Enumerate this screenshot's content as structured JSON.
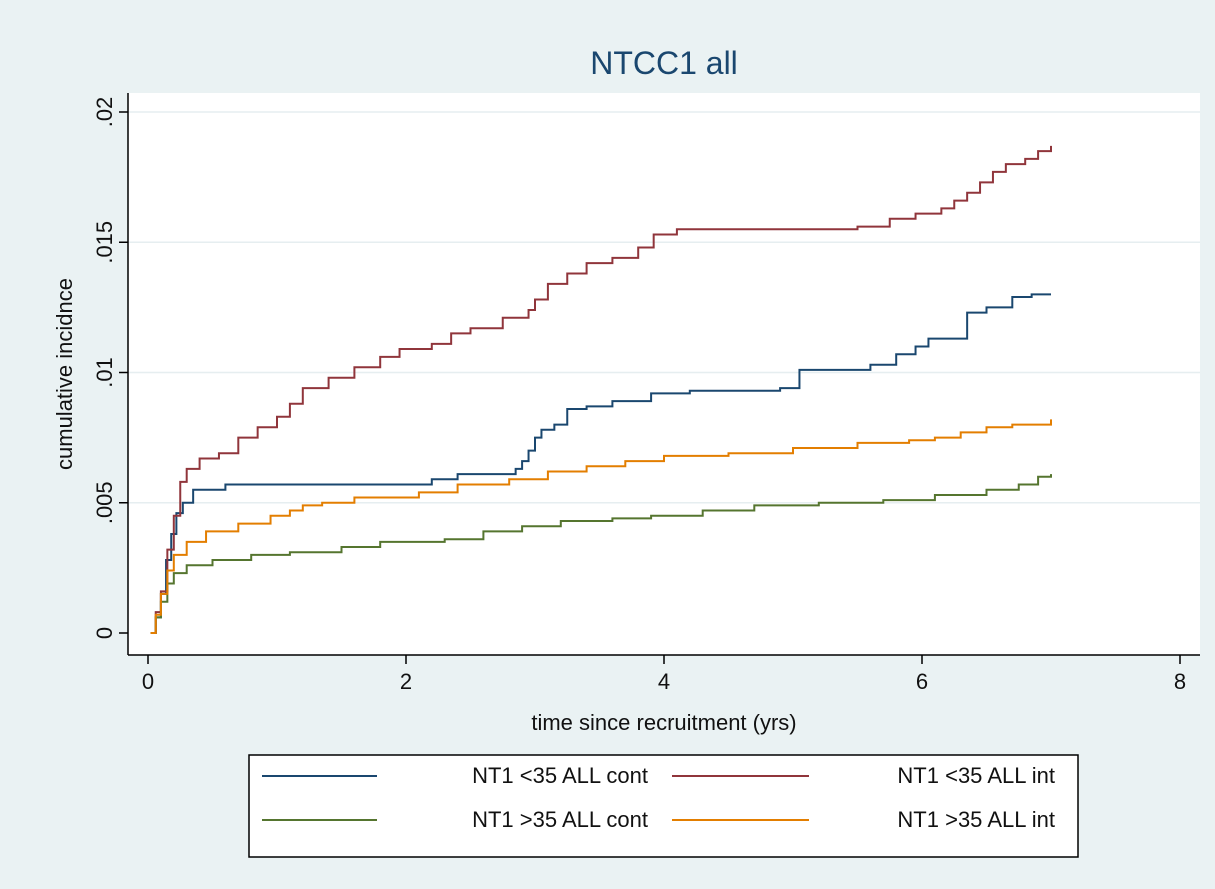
{
  "chart_data": {
    "type": "line",
    "title": "NTCC1 all",
    "xlabel": "time since recruitment (yrs)",
    "ylabel": "cumulative incidnce",
    "xlim": [
      0,
      8
    ],
    "ylim": [
      0,
      0.02
    ],
    "x_ticks": [
      0,
      2,
      4,
      6,
      8
    ],
    "x_tick_labels": [
      "0",
      "2",
      "4",
      "6",
      "8"
    ],
    "y_ticks": [
      0,
      0.005,
      0.01,
      0.015,
      0.02
    ],
    "y_tick_labels": [
      "0",
      ".005",
      ".01",
      ".015",
      ".02"
    ],
    "grid": "horizontal",
    "legend_position": "bottom",
    "series": [
      {
        "name": "NT1 <35 ALL cont",
        "color": "#1a476f",
        "step": true,
        "points": [
          [
            0.02,
            0
          ],
          [
            0.06,
            0.0006
          ],
          [
            0.1,
            0.0015
          ],
          [
            0.14,
            0.0028
          ],
          [
            0.18,
            0.0038
          ],
          [
            0.22,
            0.0046
          ],
          [
            0.27,
            0.005
          ],
          [
            0.35,
            0.0055
          ],
          [
            0.6,
            0.0057
          ],
          [
            2.2,
            0.0059
          ],
          [
            2.4,
            0.0061
          ],
          [
            2.85,
            0.0063
          ],
          [
            2.9,
            0.0066
          ],
          [
            2.95,
            0.007
          ],
          [
            3.0,
            0.0075
          ],
          [
            3.05,
            0.0078
          ],
          [
            3.15,
            0.008
          ],
          [
            3.25,
            0.0086
          ],
          [
            3.4,
            0.0087
          ],
          [
            3.6,
            0.0089
          ],
          [
            3.9,
            0.0092
          ],
          [
            4.2,
            0.0093
          ],
          [
            4.9,
            0.0094
          ],
          [
            5.05,
            0.0101
          ],
          [
            5.6,
            0.0103
          ],
          [
            5.8,
            0.0107
          ],
          [
            5.95,
            0.011
          ],
          [
            6.05,
            0.0113
          ],
          [
            6.35,
            0.0123
          ],
          [
            6.5,
            0.0125
          ],
          [
            6.7,
            0.0129
          ],
          [
            6.85,
            0.013
          ],
          [
            7.0,
            0.013
          ]
        ]
      },
      {
        "name": "NT1 <35 ALL int",
        "color": "#90353b",
        "step": true,
        "points": [
          [
            0.02,
            0
          ],
          [
            0.06,
            0.0008
          ],
          [
            0.1,
            0.0016
          ],
          [
            0.15,
            0.0032
          ],
          [
            0.2,
            0.0045
          ],
          [
            0.25,
            0.0058
          ],
          [
            0.3,
            0.0063
          ],
          [
            0.4,
            0.0067
          ],
          [
            0.55,
            0.0069
          ],
          [
            0.7,
            0.0075
          ],
          [
            0.85,
            0.0079
          ],
          [
            1.0,
            0.0083
          ],
          [
            1.1,
            0.0088
          ],
          [
            1.2,
            0.0094
          ],
          [
            1.4,
            0.0098
          ],
          [
            1.6,
            0.0102
          ],
          [
            1.8,
            0.0106
          ],
          [
            1.95,
            0.0109
          ],
          [
            2.2,
            0.0111
          ],
          [
            2.35,
            0.0115
          ],
          [
            2.5,
            0.0117
          ],
          [
            2.75,
            0.0121
          ],
          [
            2.95,
            0.0124
          ],
          [
            3.0,
            0.0128
          ],
          [
            3.1,
            0.0134
          ],
          [
            3.25,
            0.0138
          ],
          [
            3.4,
            0.0142
          ],
          [
            3.6,
            0.0144
          ],
          [
            3.8,
            0.0148
          ],
          [
            3.92,
            0.0153
          ],
          [
            4.1,
            0.0155
          ],
          [
            5.5,
            0.0156
          ],
          [
            5.75,
            0.0159
          ],
          [
            5.95,
            0.0161
          ],
          [
            6.15,
            0.0163
          ],
          [
            6.25,
            0.0166
          ],
          [
            6.35,
            0.0169
          ],
          [
            6.45,
            0.0173
          ],
          [
            6.55,
            0.0177
          ],
          [
            6.65,
            0.018
          ],
          [
            6.8,
            0.0182
          ],
          [
            6.9,
            0.0185
          ],
          [
            7.0,
            0.0187
          ]
        ]
      },
      {
        "name": "NT1 >35 ALL cont",
        "color": "#55752f",
        "step": true,
        "points": [
          [
            0.02,
            0
          ],
          [
            0.06,
            0.0006
          ],
          [
            0.1,
            0.0012
          ],
          [
            0.15,
            0.0019
          ],
          [
            0.2,
            0.0023
          ],
          [
            0.3,
            0.0026
          ],
          [
            0.5,
            0.0028
          ],
          [
            0.8,
            0.003
          ],
          [
            1.1,
            0.0031
          ],
          [
            1.5,
            0.0033
          ],
          [
            1.8,
            0.0035
          ],
          [
            2.3,
            0.0036
          ],
          [
            2.6,
            0.0039
          ],
          [
            2.9,
            0.0041
          ],
          [
            3.2,
            0.0043
          ],
          [
            3.6,
            0.0044
          ],
          [
            3.9,
            0.0045
          ],
          [
            4.3,
            0.0047
          ],
          [
            4.7,
            0.0049
          ],
          [
            5.2,
            0.005
          ],
          [
            5.7,
            0.0051
          ],
          [
            6.1,
            0.0053
          ],
          [
            6.5,
            0.0055
          ],
          [
            6.75,
            0.0057
          ],
          [
            6.9,
            0.006
          ],
          [
            7.0,
            0.0061
          ]
        ]
      },
      {
        "name": "NT1 >35 ALL int",
        "color": "#e37e00",
        "step": true,
        "points": [
          [
            0.02,
            0
          ],
          [
            0.06,
            0.0007
          ],
          [
            0.1,
            0.0015
          ],
          [
            0.15,
            0.0024
          ],
          [
            0.2,
            0.003
          ],
          [
            0.3,
            0.0035
          ],
          [
            0.45,
            0.0039
          ],
          [
            0.7,
            0.0042
          ],
          [
            0.95,
            0.0045
          ],
          [
            1.1,
            0.0047
          ],
          [
            1.2,
            0.0049
          ],
          [
            1.35,
            0.005
          ],
          [
            1.6,
            0.0052
          ],
          [
            2.1,
            0.0054
          ],
          [
            2.4,
            0.0057
          ],
          [
            2.8,
            0.0059
          ],
          [
            3.1,
            0.0062
          ],
          [
            3.4,
            0.0064
          ],
          [
            3.7,
            0.0066
          ],
          [
            4.0,
            0.0068
          ],
          [
            4.5,
            0.0069
          ],
          [
            5.0,
            0.0071
          ],
          [
            5.5,
            0.0073
          ],
          [
            5.9,
            0.0074
          ],
          [
            6.1,
            0.0075
          ],
          [
            6.3,
            0.0077
          ],
          [
            6.5,
            0.0079
          ],
          [
            6.7,
            0.008
          ],
          [
            7.0,
            0.0082
          ]
        ]
      }
    ]
  }
}
